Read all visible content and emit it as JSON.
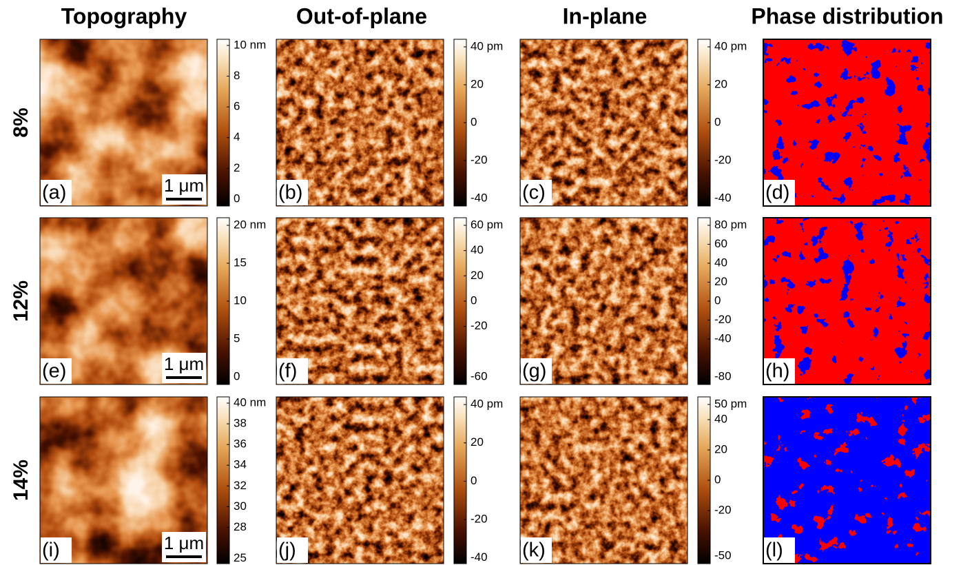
{
  "columns": [
    "Topography",
    "Out-of-plane",
    "In-plane",
    "Phase distribution"
  ],
  "rows": [
    {
      "label": "8%",
      "panels": [
        {
          "label": "(a)",
          "scale_bar": "1 μm",
          "colorbar": {
            "lim": [
              -0.45,
              10.4
            ],
            "ticks": [
              {
                "value": 10,
                "label": "10 nm"
              },
              8,
              6,
              4,
              2,
              0
            ]
          }
        },
        {
          "label": "(b)",
          "colorbar": {
            "lim": [
              -44,
              44
            ],
            "ticks": [
              {
                "value": 40,
                "label": "40 pm"
              },
              20,
              0,
              -20,
              -40
            ]
          }
        },
        {
          "label": "(c)",
          "colorbar": {
            "lim": [
              -44,
              44
            ],
            "ticks": [
              {
                "value": 40,
                "label": "40 pm"
              },
              20,
              0,
              -20,
              -40
            ]
          }
        },
        {
          "label": "(d)"
        }
      ]
    },
    {
      "label": "12%",
      "panels": [
        {
          "label": "(e)",
          "scale_bar": "1 μm",
          "colorbar": {
            "lim": [
              -1,
              21
            ],
            "ticks": [
              {
                "value": 20,
                "label": "20 nm"
              },
              15,
              10,
              5,
              0
            ]
          }
        },
        {
          "label": "(f)",
          "colorbar": {
            "lim": [
              -66,
              66
            ],
            "ticks": [
              {
                "value": 60,
                "label": "60 pm"
              },
              40,
              20,
              0,
              -20,
              -60
            ]
          }
        },
        {
          "label": "(g)",
          "colorbar": {
            "lim": [
              -88,
              88
            ],
            "ticks": [
              {
                "value": 80,
                "label": "80 pm"
              },
              60,
              40,
              20,
              0,
              -20,
              -40,
              -80
            ]
          }
        },
        {
          "label": "(h)"
        }
      ]
    },
    {
      "label": "14%",
      "panels": [
        {
          "label": "(i)",
          "scale_bar": "1 μm",
          "colorbar": {
            "lim": [
              24.5,
              40.6
            ],
            "ticks": [
              {
                "value": 40,
                "label": "40 nm"
              },
              38,
              36,
              34,
              32,
              30,
              28,
              25
            ]
          }
        },
        {
          "label": "(j)",
          "colorbar": {
            "lim": [
              -43,
              44
            ],
            "ticks": [
              {
                "value": 40,
                "label": "40 pm"
              },
              20,
              0,
              -20,
              -40
            ]
          }
        },
        {
          "label": "(k)",
          "colorbar": {
            "lim": [
              -55,
              55
            ],
            "ticks": [
              {
                "value": 50,
                "label": "50 pm"
              },
              40,
              20,
              0,
              -20,
              -50
            ]
          }
        },
        {
          "label": "(l)"
        }
      ]
    }
  ]
}
